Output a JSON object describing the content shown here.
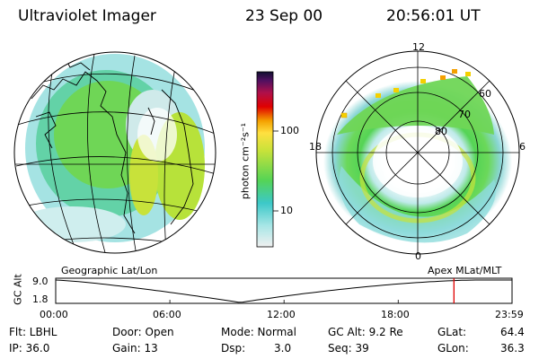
{
  "header": {
    "title": "Ultraviolet Imager",
    "date": "23 Sep 00",
    "time": "20:56:01 UT"
  },
  "colors": {
    "aurora_green": "#55d455",
    "aurora_yellow": "#d8e23a",
    "aurora_cyan": "#3cc8c8",
    "marker_red": "#e00000",
    "marker_orange": "#f4a000"
  },
  "colorbar": {
    "unit_label": "photon cm⁻²s⁻¹",
    "ticks": [
      {
        "label": "100",
        "value": 100
      },
      {
        "label": "10",
        "value": 10
      }
    ],
    "scale": "log"
  },
  "map_left": {
    "caption": "Geographic Lat/Lon"
  },
  "map_right": {
    "caption": "Apex MLat/MLT",
    "mlt_labels": {
      "top": "12",
      "left": "18",
      "right": "6",
      "bottom": "0"
    },
    "lat_labels": [
      "60",
      "70",
      "80"
    ]
  },
  "timeline": {
    "axis_label": "GC Alt",
    "y_labels": [
      "9.0",
      "1.8"
    ],
    "x_labels": [
      "00:00",
      "06:00",
      "12:00",
      "18:00",
      "23:59"
    ],
    "marker_time_hours": 20.93
  },
  "status": {
    "flt": "Flt: LBHL",
    "ip": "IP: 36.0",
    "door": "Door: Open",
    "gain": "Gain: 13",
    "mode": "Mode: Normal",
    "dsp_label": "Dsp:",
    "dsp_value": "3.0",
    "gc_alt": "GC Alt: 9.2 Re",
    "seq": "Seq: 39",
    "glat_label": "GLat:",
    "glat_value": "64.4",
    "glon_label": "GLon:",
    "glon_value": "36.3"
  }
}
